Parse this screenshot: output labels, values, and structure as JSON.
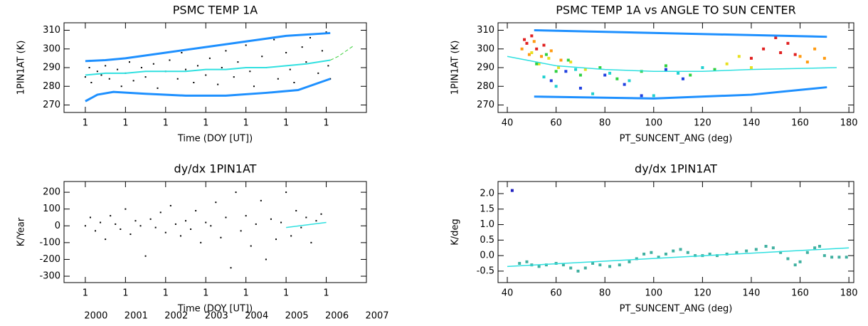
{
  "chart_data": [
    {
      "type": "scatter",
      "title": "PSMC TEMP 1A",
      "xlabel": "Time (DOY [UT])",
      "ylabel": "1PIN1AT (K)",
      "xlim": [
        1999.47,
        2007.0
      ],
      "ylim": [
        266,
        314
      ],
      "xticks": [
        {
          "value": 2000,
          "label": "1"
        },
        {
          "value": 2001,
          "label": "1"
        },
        {
          "value": 2002,
          "label": "1"
        },
        {
          "value": 2003,
          "label": "1"
        },
        {
          "value": 2004,
          "label": "1"
        },
        {
          "value": 2005,
          "label": "1"
        },
        {
          "value": 2006,
          "label": "1"
        }
      ],
      "yticks": [
        270,
        280,
        290,
        300,
        310
      ],
      "series": [
        {
          "color": "#000000",
          "style": "points",
          "x": [
            2000.0,
            2000.1,
            2000.15,
            2000.3,
            2000.4,
            2000.5,
            2000.6,
            2000.8,
            2000.9,
            2001.0,
            2001.1,
            2001.2,
            2001.4,
            2001.5,
            2001.7,
            2001.8,
            2002.0,
            2002.1,
            2002.3,
            2002.4,
            2002.5,
            2002.7,
            2002.8,
            2003.0,
            2003.1,
            2003.3,
            2003.4,
            2003.5,
            2003.7,
            2003.8,
            2004.0,
            2004.1,
            2004.2,
            2004.4,
            2004.5,
            2004.7,
            2004.8,
            2005.0,
            2005.1,
            2005.2,
            2005.4,
            2005.5,
            2005.6,
            2005.8,
            2005.9,
            2006.0,
            2006.05,
            2006.1
          ],
          "y": [
            285,
            290,
            282,
            288,
            286,
            291,
            284,
            289,
            280,
            287,
            293,
            283,
            290,
            285,
            292,
            279,
            288,
            294,
            284,
            298,
            289,
            282,
            291,
            286,
            295,
            281,
            290,
            299,
            285,
            293,
            302,
            288,
            280,
            296,
            290,
            305,
            284,
            298,
            289,
            282,
            301,
            293,
            306,
            287,
            299,
            309,
            291,
            284
          ]
        },
        {
          "color": "#30e0e0",
          "style": "line",
          "width": 2,
          "x": [
            2000.0,
            2000.5,
            2001.0,
            2001.5,
            2002.0,
            2002.5,
            2003.0,
            2003.5,
            2004.0,
            2004.5,
            2005.0,
            2005.5,
            2006.1
          ],
          "y": [
            286,
            287,
            287,
            288,
            288,
            288,
            289,
            289,
            290,
            290,
            291,
            292,
            294
          ]
        },
        {
          "color": "#1e90ff",
          "style": "line",
          "width": 3,
          "x": [
            2000.0,
            2000.5,
            2001.0,
            2002.0,
            2003.0,
            2004.0,
            2005.0,
            2006.1
          ],
          "y": [
            293.5,
            294,
            295,
            298,
            301,
            304,
            307,
            308.5
          ]
        },
        {
          "color": "#1e90ff",
          "style": "line",
          "width": 3,
          "x": [
            2000.0,
            2000.3,
            2000.7,
            2001.5,
            2002.5,
            2003.5,
            2004.5,
            2005.3,
            2006.1
          ],
          "y": [
            272,
            275.5,
            277,
            276,
            275,
            275,
            276.5,
            278,
            284
          ]
        },
        {
          "color": "#40d040",
          "style": "dashed",
          "width": 1,
          "x": [
            2006.1,
            2006.3,
            2006.5,
            2006.7
          ],
          "y": [
            294,
            296,
            299,
            302
          ]
        }
      ]
    },
    {
      "type": "scatter",
      "title": "PSMC TEMP 1A vs ANGLE TO SUN CENTER",
      "xlabel": "PT_SUNCENT_ANG (deg)",
      "ylabel": "1PIN1AT (K)",
      "xlim": [
        36.2,
        182
      ],
      "ylim": [
        266,
        314
      ],
      "xticks": [
        40,
        60,
        80,
        100,
        120,
        140,
        160,
        180
      ],
      "yticks": [
        270,
        280,
        290,
        300,
        310
      ],
      "series": [
        {
          "color": "#e02020",
          "style": "squares",
          "x": [
            47,
            48,
            50,
            52,
            55,
            140,
            145,
            150,
            152,
            155,
            158
          ],
          "y": [
            305,
            303,
            307,
            300,
            302,
            295,
            300,
            306,
            298,
            303,
            297
          ]
        },
        {
          "color": "#ff9a10",
          "style": "squares",
          "x": [
            46,
            49,
            51,
            54,
            58,
            62,
            160,
            163,
            166,
            170
          ],
          "y": [
            300,
            297,
            304,
            296,
            299,
            294,
            296,
            293,
            300,
            295
          ]
        },
        {
          "color": "#e8e020",
          "style": "squares",
          "x": [
            50,
            53,
            57,
            61,
            66,
            72,
            130,
            135,
            140
          ],
          "y": [
            298,
            292,
            295,
            290,
            293,
            289,
            292,
            296,
            290
          ]
        },
        {
          "color": "#30d040",
          "style": "squares",
          "x": [
            52,
            56,
            60,
            65,
            70,
            78,
            85,
            95,
            105,
            115,
            125
          ],
          "y": [
            292,
            297,
            288,
            294,
            286,
            290,
            284,
            288,
            291,
            286,
            289
          ]
        },
        {
          "color": "#20d0d0",
          "style": "squares",
          "x": [
            55,
            60,
            68,
            75,
            82,
            90,
            100,
            110,
            120
          ],
          "y": [
            285,
            280,
            289,
            276,
            287,
            283,
            275,
            287,
            290
          ]
        },
        {
          "color": "#2040e0",
          "style": "squares",
          "x": [
            58,
            64,
            70,
            80,
            88,
            95,
            105,
            112
          ],
          "y": [
            283,
            288,
            279,
            286,
            281,
            275,
            289,
            284
          ]
        },
        {
          "color": "#30e0e0",
          "style": "line",
          "width": 1.5,
          "x": [
            40,
            60,
            80,
            100,
            120,
            140,
            175
          ],
          "y": [
            296,
            291,
            289,
            288,
            288,
            289,
            290
          ]
        },
        {
          "color": "#1e90ff",
          "style": "line",
          "width": 3,
          "x": [
            51,
            171
          ],
          "y": [
            310,
            306.5
          ]
        },
        {
          "color": "#1e90ff",
          "style": "line",
          "width": 3,
          "x": [
            51,
            100,
            140,
            171
          ],
          "y": [
            274.5,
            273.5,
            275.5,
            279.5
          ]
        }
      ]
    },
    {
      "type": "scatter",
      "title": "dy/dx 1PIN1AT",
      "xlabel": "Time (DOY [UT])",
      "ylabel": "K/Year",
      "xlim": [
        1999.47,
        2007.0
      ],
      "ylim": [
        -338,
        264
      ],
      "xticks": [
        {
          "value": 2000,
          "label": "1"
        },
        {
          "value": 2001,
          "label": "1"
        },
        {
          "value": 2002,
          "label": "1"
        },
        {
          "value": 2003,
          "label": "1"
        },
        {
          "value": 2004,
          "label": "1"
        },
        {
          "value": 2005,
          "label": "1"
        },
        {
          "value": 2006,
          "label": "1"
        }
      ],
      "yticks": [
        -300,
        -200,
        -100,
        0,
        100,
        200
      ],
      "year_labels": [
        "2000",
        "2001",
        "2002",
        "2003",
        "2004",
        "2005",
        "2006",
        "2007"
      ],
      "series": [
        {
          "color": "#000000",
          "style": "points",
          "x": [
            2000.0,
            2000.125,
            2000.25,
            2000.375,
            2000.5,
            2000.625,
            2000.75,
            2000.875,
            2001.0,
            2001.125,
            2001.25,
            2001.375,
            2001.5,
            2001.625,
            2001.75,
            2001.875,
            2002.0,
            2002.125,
            2002.25,
            2002.375,
            2002.5,
            2002.625,
            2002.75,
            2002.875,
            2003.0,
            2003.125,
            2003.25,
            2003.375,
            2003.5,
            2003.625,
            2003.75,
            2003.875,
            2004.0,
            2004.125,
            2004.25,
            2004.375,
            2004.5,
            2004.625,
            2004.75,
            2004.875,
            2005.0,
            2005.125,
            2005.25,
            2005.375,
            2005.5,
            2005.625,
            2005.75,
            2005.875
          ],
          "y": [
            0,
            50,
            -30,
            20,
            -80,
            60,
            10,
            -20,
            100,
            -50,
            30,
            0,
            -180,
            40,
            -10,
            80,
            -40,
            120,
            10,
            -60,
            30,
            -20,
            90,
            -100,
            20,
            0,
            140,
            -70,
            50,
            -250,
            200,
            -30,
            60,
            -120,
            10,
            150,
            -200,
            40,
            -80,
            20,
            200,
            -60,
            90,
            -10,
            50,
            -100,
            30,
            70
          ]
        },
        {
          "color": "#30e0e0",
          "style": "line",
          "width": 1.5,
          "x": [
            2005.0,
            2006.0
          ],
          "y": [
            -10,
            20
          ]
        }
      ]
    },
    {
      "type": "scatter",
      "title": "dy/dx 1PIN1AT",
      "xlabel": "PT_SUNCENT_ANG (deg)",
      "ylabel": "K/deg",
      "xlim": [
        36.2,
        182
      ],
      "ylim": [
        -0.87,
        2.39
      ],
      "xticks": [
        40,
        60,
        80,
        100,
        120,
        140,
        160,
        180
      ],
      "yticks": [
        {
          "value": -0.5,
          "label": "-0.5"
        },
        {
          "value": 0,
          "label": "0.0"
        },
        {
          "value": 0.5,
          "label": "0.5"
        },
        {
          "value": 1,
          "label": "1.0"
        },
        {
          "value": 1.5,
          "label": "1.5"
        },
        {
          "value": 2,
          "label": "2.0"
        }
      ],
      "series": [
        {
          "color": "#40b0a0",
          "style": "squares",
          "x": [
            45,
            48,
            50,
            53,
            56,
            60,
            63,
            66,
            69,
            72,
            75,
            78,
            82,
            86,
            90,
            93,
            96,
            99,
            102,
            105,
            108,
            111,
            114,
            117,
            120,
            123,
            126,
            130,
            134,
            138,
            142,
            146,
            149,
            152,
            155,
            158,
            160,
            163,
            166,
            168,
            170,
            173,
            176,
            179
          ],
          "y": [
            -0.25,
            -0.2,
            -0.3,
            -0.35,
            -0.3,
            -0.25,
            -0.3,
            -0.4,
            -0.5,
            -0.4,
            -0.25,
            -0.3,
            -0.35,
            -0.3,
            -0.2,
            -0.1,
            0.05,
            0.1,
            -0.05,
            0.05,
            0.15,
            0.2,
            0.1,
            0.0,
            0.0,
            0.05,
            0.0,
            0.05,
            0.1,
            0.15,
            0.2,
            0.3,
            0.25,
            0.1,
            -0.1,
            -0.3,
            -0.2,
            0.1,
            0.25,
            0.3,
            0.0,
            -0.05,
            -0.05,
            -0.05
          ]
        },
        {
          "color": "#2020c0",
          "style": "squares",
          "x": [
            42
          ],
          "y": [
            2.1
          ]
        },
        {
          "color": "#30e0e0",
          "style": "line",
          "width": 1.5,
          "x": [
            40,
            180
          ],
          "y": [
            -0.35,
            0.25
          ]
        }
      ]
    }
  ]
}
